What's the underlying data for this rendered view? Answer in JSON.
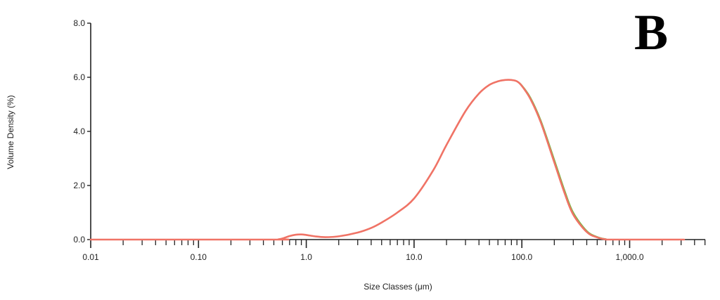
{
  "panel_label": "B",
  "chart_data": {
    "type": "line",
    "title": "",
    "xlabel": "Size Classes (μm)",
    "ylabel": "Volume Density (%)",
    "x_scale": "log",
    "xlim": [
      0.01,
      5000
    ],
    "ylim": [
      0,
      8
    ],
    "x_ticks": [
      {
        "value": 0.01,
        "label": "0.01"
      },
      {
        "value": 0.1,
        "label": "0.10"
      },
      {
        "value": 1,
        "label": "1.0"
      },
      {
        "value": 10,
        "label": "10.0"
      },
      {
        "value": 100,
        "label": "100.0"
      },
      {
        "value": 1000,
        "label": "1,000.0"
      }
    ],
    "y_ticks": [
      {
        "value": 0,
        "label": "0.0"
      },
      {
        "value": 2,
        "label": "2.0"
      },
      {
        "value": 4,
        "label": "4.0"
      },
      {
        "value": 6,
        "label": "6.0"
      },
      {
        "value": 8,
        "label": "8.0"
      }
    ],
    "grid": false,
    "legend": "none",
    "series": [
      {
        "color": "#7cb342",
        "x": [
          0.01,
          0.5,
          0.55,
          0.6,
          0.7,
          0.8,
          0.9,
          1.0,
          1.2,
          1.5,
          2,
          3,
          4,
          5,
          7,
          10,
          15,
          20,
          30,
          40,
          50,
          60,
          70,
          80,
          90,
          100,
          120,
          150,
          200,
          250,
          300,
          400,
          500,
          600,
          700,
          3200
        ],
        "y": [
          0,
          0,
          0.01,
          0.04,
          0.13,
          0.18,
          0.19,
          0.17,
          0.12,
          0.09,
          0.12,
          0.26,
          0.43,
          0.63,
          1.0,
          1.52,
          2.55,
          3.5,
          4.75,
          5.4,
          5.72,
          5.85,
          5.9,
          5.9,
          5.85,
          5.7,
          5.25,
          4.4,
          2.95,
          1.8,
          1.0,
          0.32,
          0.1,
          0.02,
          0,
          0
        ]
      },
      {
        "color": "#f07366",
        "x": [
          0.01,
          0.5,
          0.55,
          0.6,
          0.7,
          0.8,
          0.9,
          1.0,
          1.2,
          1.5,
          2,
          3,
          4,
          5,
          7,
          10,
          15,
          20,
          30,
          40,
          50,
          60,
          70,
          80,
          90,
          100,
          120,
          150,
          200,
          250,
          300,
          400,
          500,
          600,
          700,
          3200
        ],
        "y": [
          0,
          0,
          0.01,
          0.04,
          0.13,
          0.18,
          0.19,
          0.17,
          0.12,
          0.09,
          0.12,
          0.26,
          0.43,
          0.63,
          1.0,
          1.52,
          2.55,
          3.5,
          4.75,
          5.4,
          5.72,
          5.85,
          5.9,
          5.9,
          5.85,
          5.68,
          5.2,
          4.33,
          2.85,
          1.7,
          0.92,
          0.28,
          0.08,
          0.01,
          0,
          0
        ]
      }
    ]
  }
}
